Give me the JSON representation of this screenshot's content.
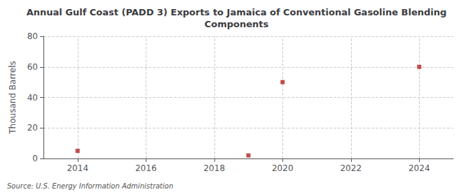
{
  "chart_data": {
    "type": "scatter",
    "title": "Annual Gulf Coast (PADD 3) Exports to Jamaica of Conventional Gasoline Blending\nComponents",
    "ylabel": "Thousand Barrels",
    "source": "Source: U.S. Energy Information Administration",
    "x": [
      2014,
      2019,
      2020,
      2024
    ],
    "values": [
      5,
      2,
      50,
      60
    ],
    "color": "#b22222",
    "marker": "square",
    "xlim": [
      2013.0,
      2025.0
    ],
    "ylim": [
      0,
      80
    ],
    "xticks": [
      2014,
      2016,
      2018,
      2020,
      2022,
      2024
    ],
    "yticks": [
      0,
      20,
      40,
      60,
      80
    ],
    "grid": true
  }
}
